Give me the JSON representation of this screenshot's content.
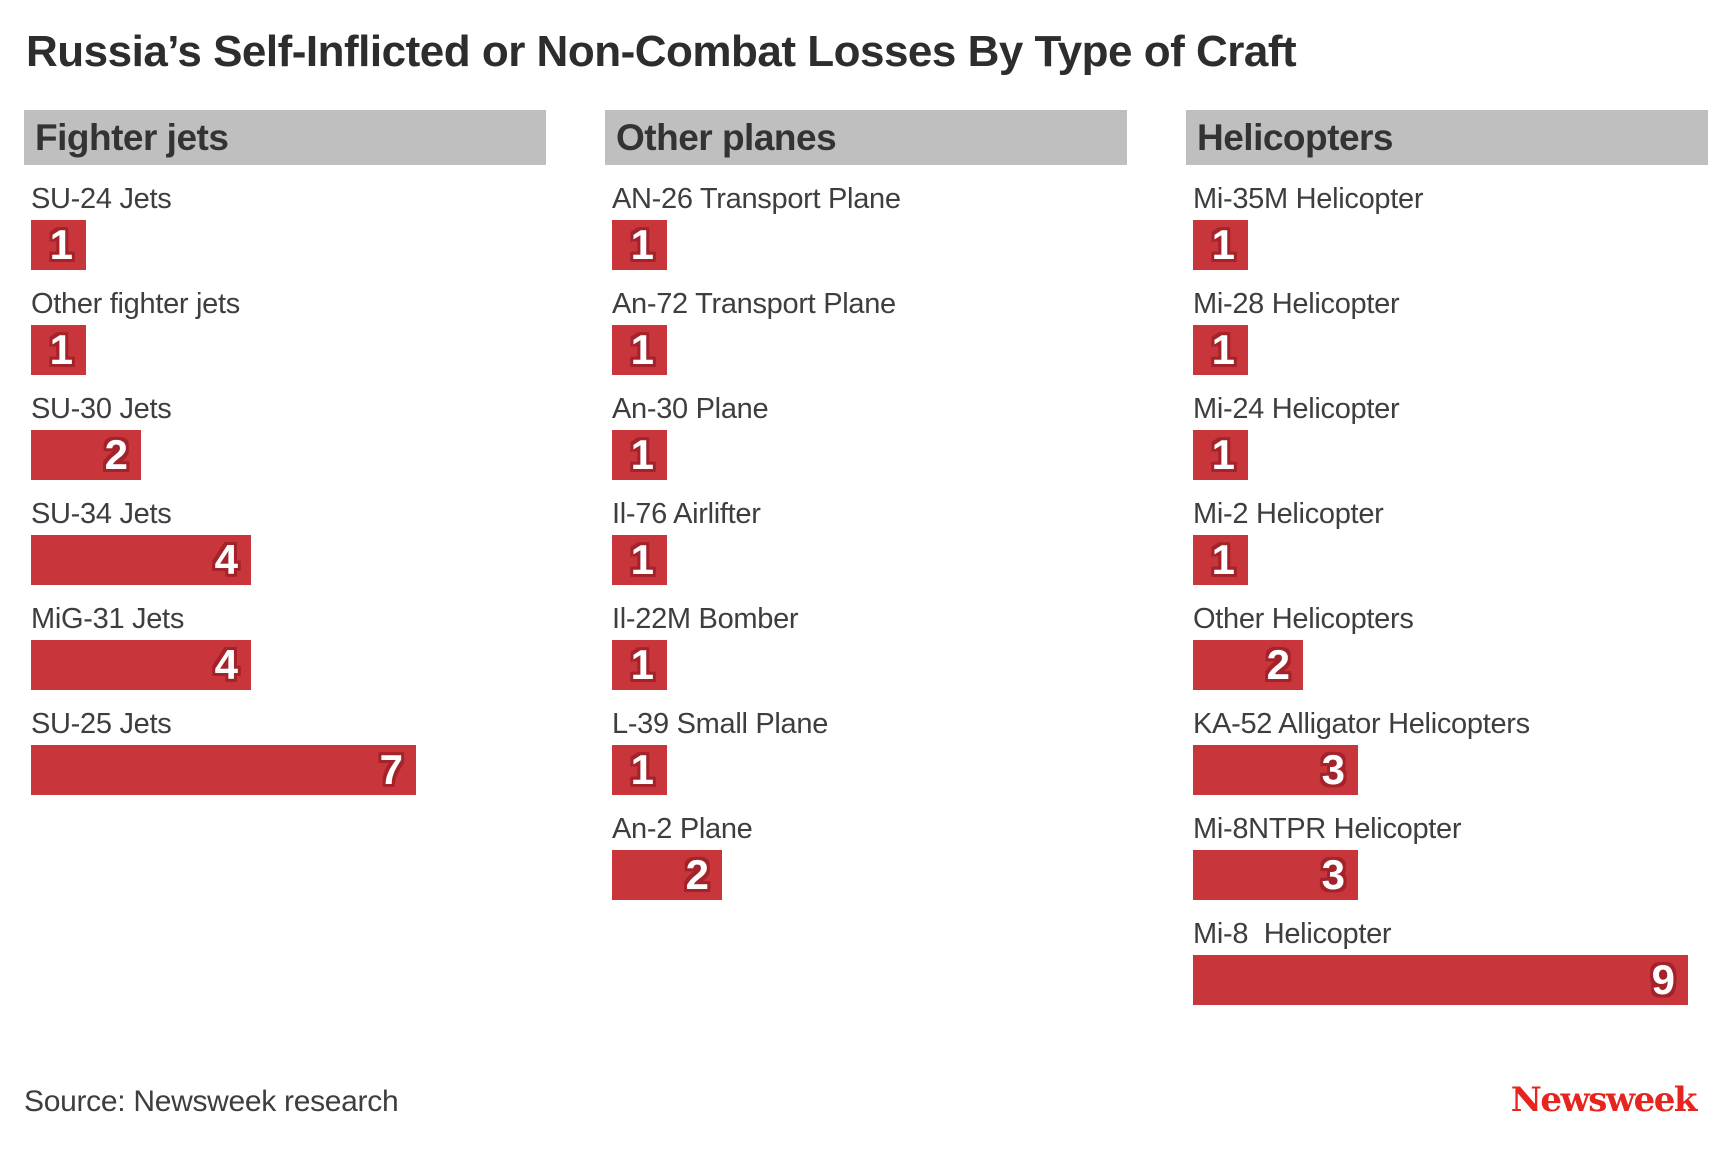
{
  "title": "Russia’s Self-Inflicted or Non-Combat Losses By Type of Craft",
  "footer": {
    "source": "Source: Newsweek research",
    "brand": "Newsweek"
  },
  "colors": {
    "bar_red": "#c8353b",
    "bar_value_outline": "#a4232b",
    "category_header_band": "#bfbfbf",
    "brand_red": "#e6251f",
    "text_dark": "#2d2d2d"
  },
  "chart_data": {
    "type": "bar",
    "orientation": "horizontal",
    "value_range": [
      0,
      9
    ],
    "grid": false,
    "legend": "none",
    "title": "Russia’s Self-Inflicted or Non-Combat Losses By Type of Craft",
    "groups": [
      {
        "header": "Fighter jets",
        "items": [
          {
            "label": "SU-24 Jets",
            "value": 1
          },
          {
            "label": "Other fighter jets",
            "value": 1
          },
          {
            "label": "SU-30 Jets",
            "value": 2
          },
          {
            "label": "SU-34 Jets",
            "value": 4
          },
          {
            "label": "MiG-31 Jets",
            "value": 4
          },
          {
            "label": "SU-25 Jets",
            "value": 7
          }
        ]
      },
      {
        "header": "Other planes",
        "items": [
          {
            "label": "AN-26 Transport Plane",
            "value": 1
          },
          {
            "label": "An-72 Transport Plane",
            "value": 1
          },
          {
            "label": "An-30 Plane",
            "value": 1
          },
          {
            "label": "Il-76 Airlifter",
            "value": 1
          },
          {
            "label": "Il-22M Bomber",
            "value": 1
          },
          {
            "label": "L-39 Small Plane",
            "value": 1
          },
          {
            "label": "An-2 Plane",
            "value": 2
          }
        ]
      },
      {
        "header": "Helicopters",
        "items": [
          {
            "label": "Mi-35M Helicopter",
            "value": 1
          },
          {
            "label": "Mi-28 Helicopter",
            "value": 1
          },
          {
            "label": "Mi-24 Helicopter",
            "value": 1
          },
          {
            "label": "Mi-2 Helicopter",
            "value": 1
          },
          {
            "label": "Other Helicopters",
            "value": 2
          },
          {
            "label": "KA-52 Alligator Helicopters",
            "value": 3
          },
          {
            "label": "Mi-8NTPR Helicopter",
            "value": 3
          },
          {
            "label": "Mi-8  Helicopter",
            "value": 9
          }
        ]
      }
    ]
  }
}
